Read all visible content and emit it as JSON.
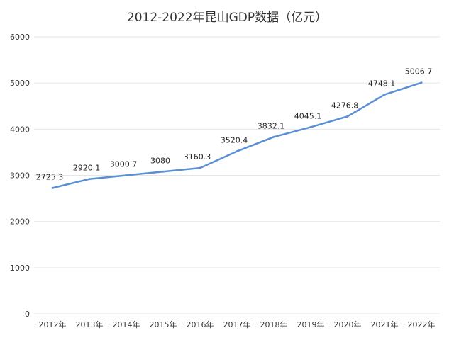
{
  "chart_data": {
    "type": "line",
    "title": "2012-2022年昆山GDP数据（亿元）",
    "categories": [
      "2012年",
      "2013年",
      "2014年",
      "2015年",
      "2016年",
      "2017年",
      "2018年",
      "2019年",
      "2020年",
      "2021年",
      "2022年"
    ],
    "series": [
      {
        "values": [
          2725.3,
          2920.1,
          3000.7,
          3080,
          3160.3,
          3520.4,
          3832.1,
          4045.1,
          4276.8,
          4748.1,
          5006.7
        ],
        "labels": [
          "2725.3",
          "2920.1",
          "3000.7",
          "3080",
          "3160.3",
          "3520.4",
          "3832.1",
          "4045.1",
          "4276.8",
          "4748.1",
          "5006.7"
        ]
      }
    ],
    "y_ticks": [
      "0",
      "1000",
      "2000",
      "3000",
      "4000",
      "5000",
      "6000"
    ],
    "ylim": [
      0,
      6000
    ],
    "grid": true,
    "line_color": "#5b8fd4",
    "grid_color": "#e6e6e6"
  }
}
